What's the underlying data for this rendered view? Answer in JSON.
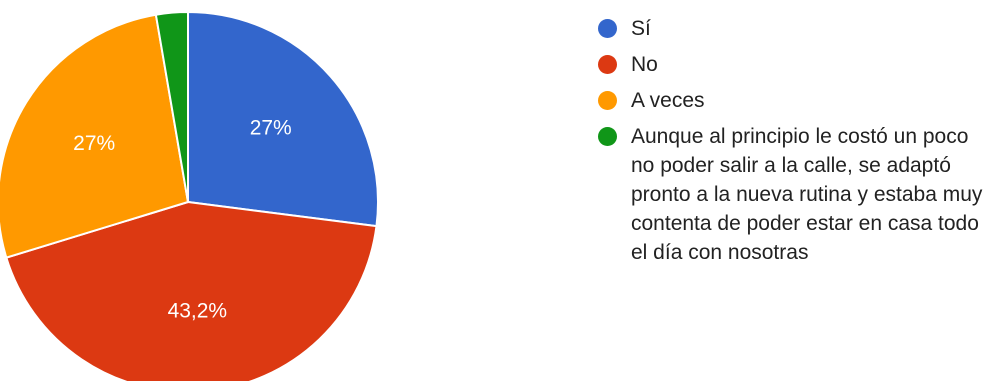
{
  "chart_data": {
    "type": "pie",
    "title": "",
    "slices": [
      {
        "label": "Sí",
        "value": 27.0,
        "display": "27%",
        "color": "#3366cc"
      },
      {
        "label": "No",
        "value": 43.2,
        "display": "43,2%",
        "color": "#dc3912"
      },
      {
        "label": "A veces",
        "value": 27.0,
        "display": "27%",
        "color": "#ff9900"
      },
      {
        "label": "Aunque al principio le costó un poco no poder salir a la calle, se adaptó pronto a la nueva rutina y estaba muy contenta de poder estar en casa todo el día con nosotras",
        "value": 2.7,
        "display": "",
        "color": "#109618"
      }
    ],
    "legend_position": "right"
  }
}
